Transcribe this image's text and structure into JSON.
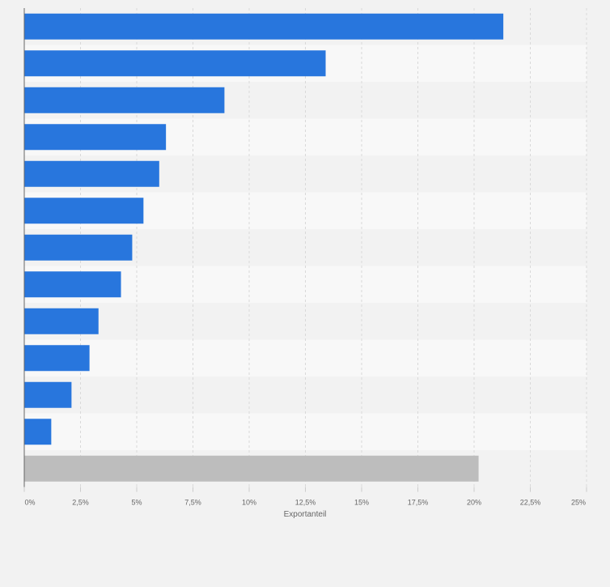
{
  "chart_data": {
    "type": "bar",
    "orientation": "horizontal",
    "categories": [
      "",
      "",
      "",
      "",
      "",
      "",
      "",
      "",
      "",
      "",
      "",
      "",
      ""
    ],
    "values": [
      21.3,
      13.4,
      8.9,
      6.3,
      6.0,
      5.3,
      4.8,
      4.3,
      3.3,
      2.9,
      2.1,
      1.2,
      20.2
    ],
    "bar_colors": [
      "#2876dd",
      "#2876dd",
      "#2876dd",
      "#2876dd",
      "#2876dd",
      "#2876dd",
      "#2876dd",
      "#2876dd",
      "#2876dd",
      "#2876dd",
      "#2876dd",
      "#2876dd",
      "#bdbdbd"
    ],
    "xlabel": "Exportanteil",
    "xlim": [
      0,
      25
    ],
    "x_ticks": [
      0,
      2.5,
      5,
      7.5,
      10,
      12.5,
      15,
      17.5,
      20,
      22.5,
      25
    ],
    "x_tick_labels": [
      "0%",
      "2,5%",
      "5%",
      "7,5%",
      "10%",
      "12,5%",
      "15%",
      "17,5%",
      "20%",
      "22,5%",
      "25%"
    ],
    "grid": true
  }
}
